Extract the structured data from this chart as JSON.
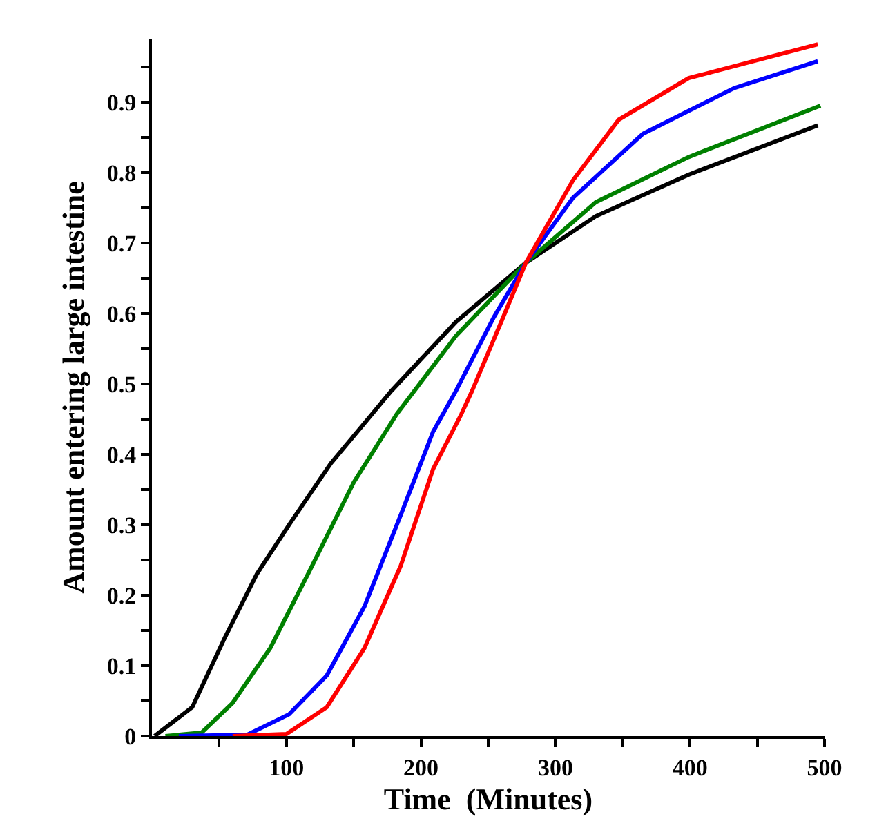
{
  "chart_data": {
    "type": "line",
    "xlabel": "Time  (Minutes)",
    "ylabel": "Amount entering large intestine",
    "xlim": [
      0,
      500
    ],
    "xticks": [
      {
        "value": 50,
        "label": null
      },
      100,
      {
        "value": 150,
        "label": null
      },
      200,
      {
        "value": 250,
        "label": null
      },
      300,
      {
        "value": 350,
        "label": null
      },
      400,
      {
        "value": 450,
        "label": null
      },
      500
    ],
    "ylim": [
      0,
      0.99
    ],
    "yticks": [
      0,
      {
        "value": 0.05,
        "label": null
      },
      0.1,
      {
        "value": 0.15,
        "label": null
      },
      0.2,
      {
        "value": 0.25,
        "label": null
      },
      0.3,
      {
        "value": 0.35,
        "label": null
      },
      0.4,
      {
        "value": 0.45,
        "label": null
      },
      0.5,
      {
        "value": 0.55,
        "label": null
      },
      0.6,
      {
        "value": 0.65,
        "label": null
      },
      0.7,
      {
        "value": 0.75,
        "label": null
      },
      0.8,
      {
        "value": 0.85,
        "label": null
      },
      0.9,
      {
        "value": 0.95,
        "label": null
      }
    ],
    "grid": false,
    "marker": "none",
    "line_style": "solid",
    "series": [
      {
        "color": "#000000",
        "x": [
          2,
          30,
          54,
          78,
          102,
          133,
          161,
          178,
          226,
          278,
          330,
          399,
          495
        ],
        "values": [
          0,
          0.041,
          0.139,
          0.23,
          0.3,
          0.387,
          0.451,
          0.49,
          0.588,
          0.672,
          0.738,
          0.797,
          0.867
        ]
      },
      {
        "color": "#008000",
        "x": [
          10,
          37,
          60,
          88,
          116,
          150,
          182,
          226,
          278,
          330,
          399,
          497
        ],
        "values": [
          0,
          0.005,
          0.047,
          0.125,
          0.23,
          0.36,
          0.457,
          0.568,
          0.672,
          0.758,
          0.822,
          0.895
        ]
      },
      {
        "color": "#0000ff",
        "x": [
          20,
          71,
          102,
          130,
          158,
          185,
          209,
          226,
          254,
          278,
          313,
          365,
          433,
          495
        ],
        "values": [
          0,
          0.002,
          0.031,
          0.086,
          0.184,
          0.314,
          0.432,
          0.49,
          0.594,
          0.672,
          0.764,
          0.855,
          0.92,
          0.958
        ]
      },
      {
        "color": "#ff0000",
        "x": [
          60,
          100,
          130,
          158,
          185,
          209,
          230,
          238,
          261,
          278,
          313,
          347,
          399,
          495
        ],
        "values": [
          0,
          0.003,
          0.041,
          0.125,
          0.242,
          0.379,
          0.457,
          0.49,
          0.594,
          0.672,
          0.789,
          0.875,
          0.934,
          0.982
        ]
      }
    ]
  }
}
